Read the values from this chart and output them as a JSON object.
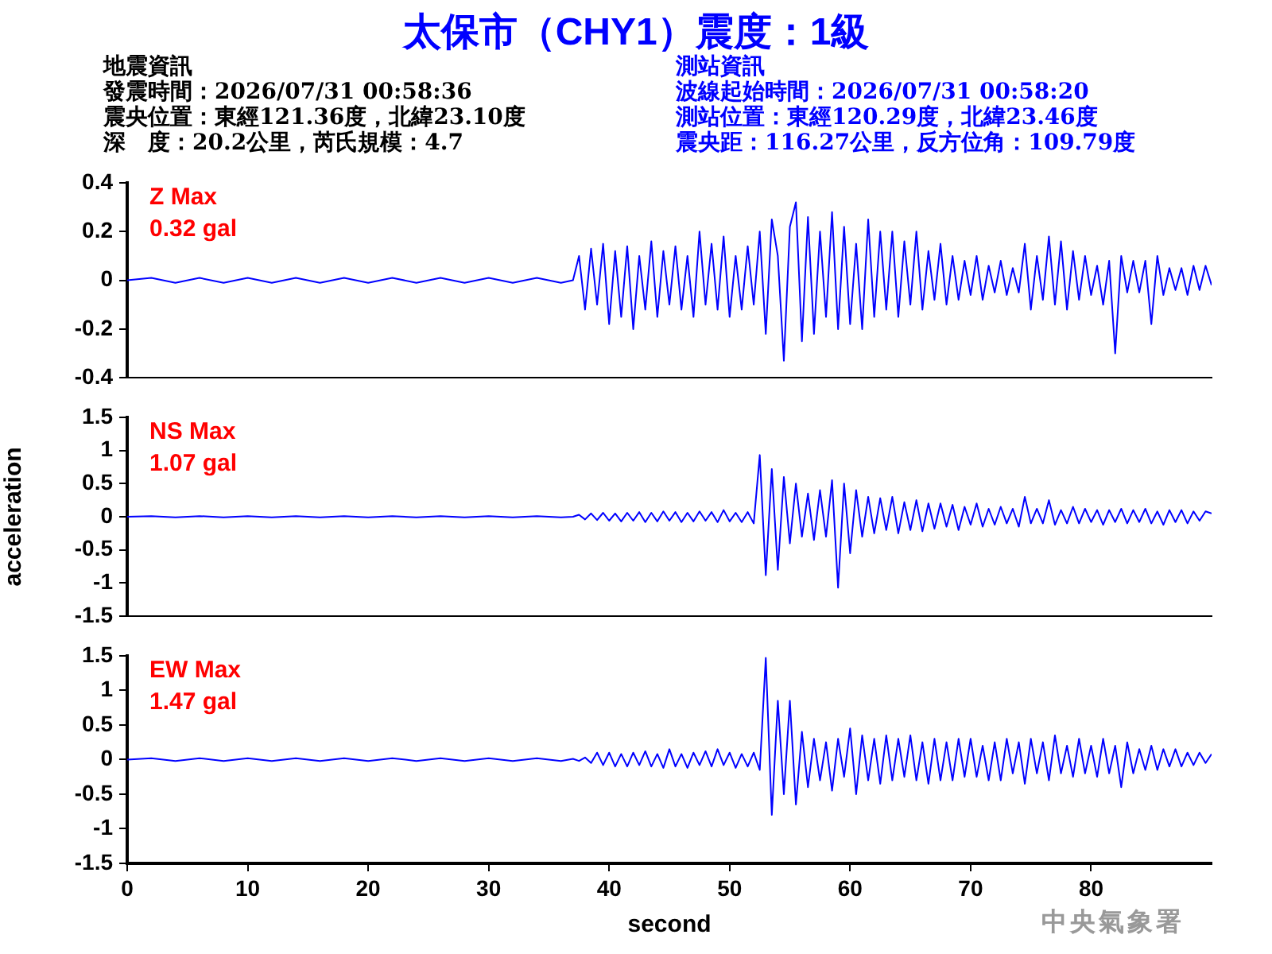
{
  "chart_data": [
    {
      "type": "line",
      "title": "太保市（CHY1）震度：1級",
      "annotations": [
        "地震資訊",
        "發震時間：2026/07/31 00:58:36",
        "震央位置：東經121.36度，北緯23.10度",
        "深　度：20.2公里，芮氏規模：4.7",
        "測站資訊",
        "波線起始時間：2026/07/31 00:58:20",
        "測站位置：東經120.29度，北緯23.46度",
        "震央距：116.27公里，反方位角：109.79度",
        "Z Max",
        "0.32 gal"
      ],
      "ylim": [
        -0.4,
        0.4
      ],
      "yticks": [
        -0.4,
        -0.2,
        0,
        0.2,
        0.4
      ],
      "xlim": [
        0,
        90
      ],
      "tick_labels": "y",
      "grid": false,
      "legend": false,
      "marker": "none",
      "x": [
        0,
        2,
        4,
        6,
        8,
        10,
        12,
        14,
        16,
        18,
        20,
        22,
        24,
        26,
        28,
        30,
        32,
        34,
        36,
        37,
        37.5,
        38,
        38.5,
        39,
        39.5,
        40,
        40.5,
        41,
        41.5,
        42,
        42.5,
        43,
        43.5,
        44,
        44.5,
        45,
        45.5,
        46,
        46.5,
        47,
        47.5,
        48,
        48.5,
        49,
        49.5,
        50,
        50.5,
        51,
        51.5,
        52,
        52.5,
        53,
        53.5,
        54,
        54.5,
        55,
        55.5,
        56,
        56.5,
        57,
        57.5,
        58,
        58.5,
        59,
        59.5,
        60,
        60.5,
        61,
        61.5,
        62,
        62.5,
        63,
        63.5,
        64,
        64.5,
        65,
        65.5,
        66,
        66.5,
        67,
        67.5,
        68,
        68.5,
        69,
        69.5,
        70,
        70.5,
        71,
        71.5,
        72,
        72.5,
        73,
        73.5,
        74,
        74.5,
        75,
        75.5,
        76,
        76.5,
        77,
        77.5,
        78,
        78.5,
        79,
        79.5,
        80,
        80.5,
        81,
        81.5,
        82,
        82.5,
        83,
        83.5,
        84,
        84.5,
        85,
        85.5,
        86,
        86.5,
        87,
        87.5,
        88,
        88.5,
        89,
        89.5,
        90
      ],
      "series": [
        {
          "color": "#0000ff",
          "values": [
            0,
            0.01,
            -0.01,
            0.01,
            -0.01,
            0.01,
            -0.01,
            0.01,
            -0.01,
            0.01,
            -0.01,
            0.01,
            -0.01,
            0.01,
            -0.01,
            0.01,
            -0.01,
            0.01,
            -0.01,
            0,
            0.1,
            -0.12,
            0.13,
            -0.1,
            0.15,
            -0.18,
            0.12,
            -0.15,
            0.14,
            -0.2,
            0.1,
            -0.12,
            0.16,
            -0.15,
            0.12,
            -0.1,
            0.14,
            -0.12,
            0.1,
            -0.15,
            0.2,
            -0.1,
            0.15,
            -0.12,
            0.18,
            -0.15,
            0.1,
            -0.12,
            0.14,
            -0.1,
            0.2,
            -0.22,
            0.25,
            0.1,
            -0.33,
            0.22,
            0.32,
            -0.25,
            0.26,
            -0.22,
            0.2,
            -0.15,
            0.28,
            -0.2,
            0.22,
            -0.18,
            0.15,
            -0.2,
            0.25,
            -0.15,
            0.2,
            -0.12,
            0.2,
            -0.15,
            0.16,
            -0.1,
            0.2,
            -0.12,
            0.12,
            -0.08,
            0.15,
            -0.1,
            0.1,
            -0.08,
            0.08,
            -0.06,
            0.1,
            -0.08,
            0.06,
            -0.05,
            0.08,
            -0.06,
            0.05,
            -0.05,
            0.15,
            -0.12,
            0.1,
            -0.08,
            0.18,
            -0.1,
            0.16,
            -0.12,
            0.12,
            -0.08,
            0.1,
            -0.06,
            0.06,
            -0.1,
            0.08,
            -0.3,
            0.1,
            -0.05,
            0.08,
            -0.05,
            0.08,
            -0.18,
            0.1,
            -0.06,
            0.05,
            -0.04,
            0.05,
            -0.06,
            0.06,
            -0.04,
            0.06,
            -0.02
          ]
        }
      ]
    },
    {
      "type": "line",
      "ylabel": "acceleration",
      "annotations": [
        "NS Max",
        "1.07 gal"
      ],
      "xlim": [
        0,
        90
      ],
      "ylim": [
        -1.5,
        1.5
      ],
      "yticks": [
        -1.5,
        -1,
        -0.5,
        0,
        0.5,
        1,
        1.5
      ],
      "tick_labels": "y",
      "grid": false,
      "legend": false,
      "marker": "none",
      "x": [
        0,
        2,
        4,
        6,
        8,
        10,
        12,
        14,
        16,
        18,
        20,
        22,
        24,
        26,
        28,
        30,
        32,
        34,
        36,
        37,
        37.5,
        38,
        38.5,
        39,
        39.5,
        40,
        40.5,
        41,
        41.5,
        42,
        42.5,
        43,
        43.5,
        44,
        44.5,
        45,
        45.5,
        46,
        46.5,
        47,
        47.5,
        48,
        48.5,
        49,
        49.5,
        50,
        50.5,
        51,
        51.5,
        52,
        52.5,
        53,
        53.5,
        54,
        54.5,
        55,
        55.5,
        56,
        56.5,
        57,
        57.5,
        58,
        58.5,
        59,
        59.5,
        60,
        60.5,
        61,
        61.5,
        62,
        62.5,
        63,
        63.5,
        64,
        64.5,
        65,
        65.5,
        66,
        66.5,
        67,
        67.5,
        68,
        68.5,
        69,
        69.5,
        70,
        70.5,
        71,
        71.5,
        72,
        72.5,
        73,
        73.5,
        74,
        74.5,
        75,
        75.5,
        76,
        76.5,
        77,
        77.5,
        78,
        78.5,
        79,
        79.5,
        80,
        80.5,
        81,
        81.5,
        82,
        82.5,
        83,
        83.5,
        84,
        84.5,
        85,
        85.5,
        86,
        86.5,
        87,
        87.5,
        88,
        88.5,
        89,
        89.5,
        90
      ],
      "series": [
        {
          "color": "#0000ff",
          "values": [
            0,
            0.01,
            -0.01,
            0.01,
            -0.01,
            0.01,
            -0.01,
            0.01,
            -0.01,
            0.01,
            -0.01,
            0.01,
            -0.01,
            0.01,
            -0.01,
            0.01,
            -0.01,
            0.01,
            -0.01,
            0,
            0.03,
            -0.04,
            0.05,
            -0.05,
            0.06,
            -0.06,
            0.05,
            -0.07,
            0.06,
            -0.06,
            0.07,
            -0.08,
            0.06,
            -0.07,
            0.08,
            -0.06,
            0.07,
            -0.08,
            0.06,
            -0.07,
            0.08,
            -0.06,
            0.07,
            -0.08,
            0.1,
            -0.07,
            0.06,
            -0.08,
            0.07,
            -0.1,
            0.93,
            -0.88,
            0.72,
            -0.8,
            0.6,
            -0.4,
            0.5,
            -0.3,
            0.35,
            -0.35,
            0.4,
            -0.3,
            0.55,
            -1.07,
            0.5,
            -0.55,
            0.4,
            -0.3,
            0.3,
            -0.25,
            0.28,
            -0.2,
            0.3,
            -0.25,
            0.22,
            -0.2,
            0.25,
            -0.22,
            0.2,
            -0.18,
            0.2,
            -0.15,
            0.18,
            -0.2,
            0.15,
            -0.12,
            0.2,
            -0.15,
            0.12,
            -0.12,
            0.15,
            -0.1,
            0.12,
            -0.15,
            0.3,
            -0.1,
            0.12,
            -0.1,
            0.25,
            -0.12,
            0.1,
            -0.1,
            0.15,
            -0.1,
            0.12,
            -0.08,
            0.1,
            -0.12,
            0.1,
            -0.08,
            0.12,
            -0.1,
            0.1,
            -0.08,
            0.12,
            -0.1,
            0.08,
            -0.12,
            0.1,
            -0.08,
            0.1,
            -0.1,
            0.08,
            -0.06,
            0.08,
            0.05
          ]
        }
      ]
    },
    {
      "type": "line",
      "xlabel": "second",
      "annotations": [
        "中央氣象署",
        "EW Max",
        "1.47 gal"
      ],
      "xlim": [
        0,
        90
      ],
      "xticks": [
        0,
        10,
        20,
        30,
        40,
        50,
        60,
        70,
        80
      ],
      "ylim": [
        -1.5,
        1.5
      ],
      "yticks": [
        -1.5,
        -1,
        -0.5,
        0,
        0.5,
        1,
        1.5
      ],
      "grid": false,
      "legend": false,
      "marker": "none",
      "x": [
        0,
        2,
        4,
        6,
        8,
        10,
        12,
        14,
        16,
        18,
        20,
        22,
        24,
        26,
        28,
        30,
        32,
        34,
        36,
        37,
        37.5,
        38,
        38.5,
        39,
        39.5,
        40,
        40.5,
        41,
        41.5,
        42,
        42.5,
        43,
        43.5,
        44,
        44.5,
        45,
        45.5,
        46,
        46.5,
        47,
        47.5,
        48,
        48.5,
        49,
        49.5,
        50,
        50.5,
        51,
        51.5,
        52,
        52.5,
        53,
        53.5,
        54,
        54.5,
        55,
        55.5,
        56,
        56.5,
        57,
        57.5,
        58,
        58.5,
        59,
        59.5,
        60,
        60.5,
        61,
        61.5,
        62,
        62.5,
        63,
        63.5,
        64,
        64.5,
        65,
        65.5,
        66,
        66.5,
        67,
        67.5,
        68,
        68.5,
        69,
        69.5,
        70,
        70.5,
        71,
        71.5,
        72,
        72.5,
        73,
        73.5,
        74,
        74.5,
        75,
        75.5,
        76,
        76.5,
        77,
        77.5,
        78,
        78.5,
        79,
        79.5,
        80,
        80.5,
        81,
        81.5,
        82,
        82.5,
        83,
        83.5,
        84,
        84.5,
        85,
        85.5,
        86,
        86.5,
        87,
        87.5,
        88,
        88.5,
        89,
        89.5,
        90
      ],
      "series": [
        {
          "color": "#0000ff",
          "values": [
            0,
            0.02,
            -0.02,
            0.02,
            -0.02,
            0.02,
            -0.02,
            0.02,
            -0.02,
            0.02,
            -0.02,
            0.02,
            -0.02,
            0.02,
            -0.02,
            0.02,
            -0.02,
            0.02,
            -0.02,
            0.01,
            -0.02,
            0.03,
            -0.05,
            0.1,
            -0.08,
            0.1,
            -0.1,
            0.08,
            -0.1,
            0.1,
            -0.08,
            0.12,
            -0.1,
            0.08,
            -0.12,
            0.15,
            -0.1,
            0.08,
            -0.12,
            0.1,
            -0.08,
            0.12,
            -0.1,
            0.15,
            -0.08,
            0.1,
            -0.12,
            0.08,
            -0.1,
            0.1,
            -0.15,
            1.47,
            -0.8,
            0.85,
            -0.5,
            0.85,
            -0.65,
            0.4,
            -0.4,
            0.3,
            -0.3,
            0.25,
            -0.45,
            0.3,
            -0.25,
            0.45,
            -0.5,
            0.35,
            -0.3,
            0.3,
            -0.35,
            0.35,
            -0.3,
            0.3,
            -0.25,
            0.35,
            -0.3,
            0.25,
            -0.35,
            0.3,
            -0.3,
            0.25,
            -0.3,
            0.3,
            -0.25,
            0.3,
            -0.25,
            0.2,
            -0.3,
            0.25,
            -0.3,
            0.3,
            -0.2,
            0.25,
            -0.35,
            0.3,
            -0.2,
            0.25,
            -0.3,
            0.35,
            -0.2,
            0.2,
            -0.25,
            0.3,
            -0.2,
            0.2,
            -0.25,
            0.3,
            -0.2,
            0.2,
            -0.4,
            0.25,
            -0.2,
            0.15,
            -0.15,
            0.2,
            -0.15,
            0.15,
            -0.1,
            0.15,
            -0.1,
            0.1,
            -0.08,
            0.1,
            -0.05,
            0.08
          ]
        }
      ]
    }
  ]
}
